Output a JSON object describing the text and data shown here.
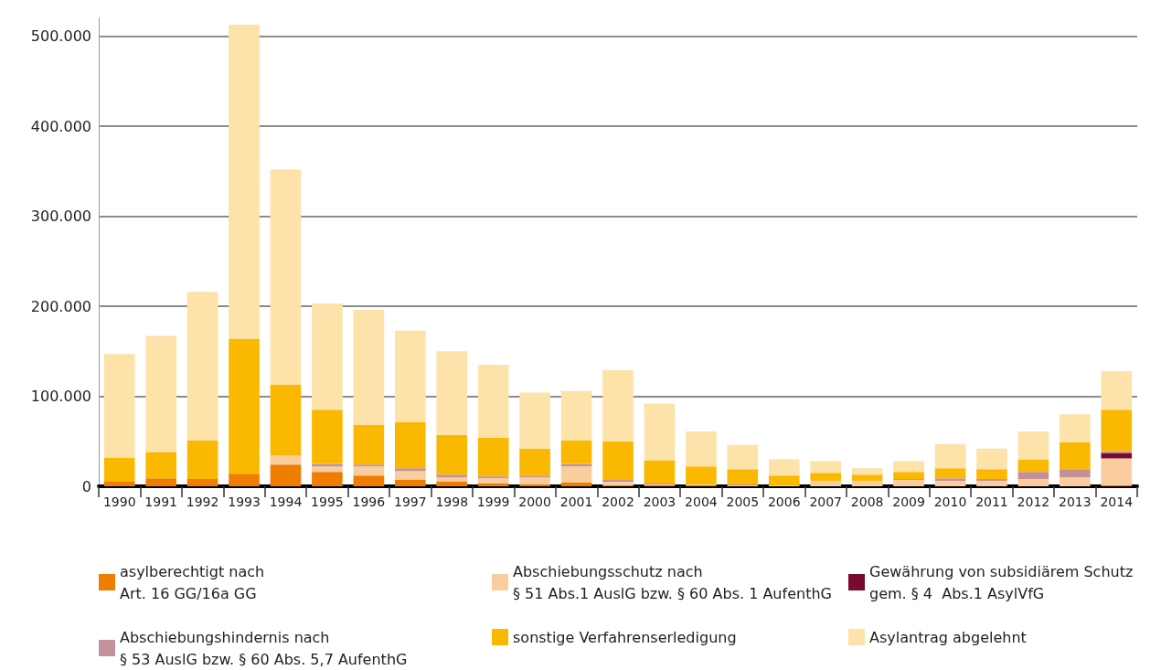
{
  "chart_data": {
    "type": "bar",
    "stacked": true,
    "categories": [
      "1990",
      "1991",
      "1992",
      "1993",
      "1994",
      "1995",
      "1996",
      "1997",
      "1998",
      "1999",
      "2000",
      "2001",
      "2002",
      "2003",
      "2004",
      "2005",
      "2006",
      "2007",
      "2008",
      "2009",
      "2010",
      "2011",
      "2012",
      "2013",
      "2014"
    ],
    "series": [
      {
        "name": "asylberechtigt nach\nArt. 16 GG/16a GG",
        "color": "#ee7d00",
        "values": [
          5000,
          9000,
          8000,
          14000,
          24000,
          16000,
          12000,
          7000,
          5000,
          3000,
          2000,
          4000,
          1000,
          1000,
          1000,
          0,
          0,
          0,
          0,
          0,
          0,
          0,
          0,
          0,
          1000
        ]
      },
      {
        "name": "Abschiebungsschutz nach\n§ 51 Abs.1 AuslG bzw. § 60 Abs. 1 AufenthG",
        "color": "#f9cd9d",
        "values": [
          0,
          0,
          0,
          0,
          10000,
          6000,
          10000,
          10000,
          5000,
          6000,
          8000,
          18000,
          4000,
          1000,
          1000,
          1000,
          1000,
          6000,
          6000,
          7000,
          6000,
          6000,
          8000,
          10000,
          30000
        ]
      },
      {
        "name": "Gewährung von subsidiärem Schutz\ngem. § 4  Abs.1 AsylVfG",
        "color": "#780a30",
        "values": [
          0,
          0,
          0,
          0,
          0,
          0,
          0,
          0,
          0,
          0,
          0,
          0,
          0,
          0,
          0,
          0,
          0,
          0,
          0,
          0,
          0,
          0,
          0,
          0,
          6000
        ]
      },
      {
        "name": "Abschiebungshindernis nach\n§ 53 AuslG bzw. § 60 Abs. 5,7 AufenthG",
        "color": "#c4919a",
        "values": [
          0,
          0,
          0,
          0,
          0,
          3000,
          2000,
          3000,
          3000,
          2000,
          2000,
          3000,
          2000,
          1000,
          0,
          1000,
          0,
          0,
          0,
          1000,
          3000,
          2000,
          8000,
          9000,
          2000
        ]
      },
      {
        "name": "sonstige Verfahrenserledigung",
        "color": "#fab900",
        "values": [
          27000,
          29000,
          43000,
          150000,
          79000,
          60000,
          44000,
          51000,
          44000,
          43000,
          30000,
          26000,
          43000,
          26000,
          20000,
          17000,
          11000,
          9000,
          7000,
          8000,
          11000,
          11000,
          14000,
          30000,
          46000
        ]
      },
      {
        "name": "Asylantrag abgelehnt",
        "color": "#fde2aa",
        "values": [
          115000,
          129000,
          165000,
          349000,
          239000,
          118000,
          128000,
          102000,
          93000,
          81000,
          62000,
          55000,
          79000,
          63000,
          39000,
          27000,
          18000,
          13000,
          7000,
          12000,
          27000,
          23000,
          31000,
          31000,
          43000
        ]
      }
    ],
    "ylim": [
      0,
      520000
    ],
    "yticks": [
      {
        "value": 0,
        "label": "0"
      },
      {
        "value": 100000,
        "label": "100.000"
      },
      {
        "value": 200000,
        "label": "200.000"
      },
      {
        "value": 300000,
        "label": "300.000"
      },
      {
        "value": 400000,
        "label": "400.000"
      },
      {
        "value": 500000,
        "label": "500.000"
      }
    ],
    "grid": "y",
    "legend": "bottom"
  }
}
